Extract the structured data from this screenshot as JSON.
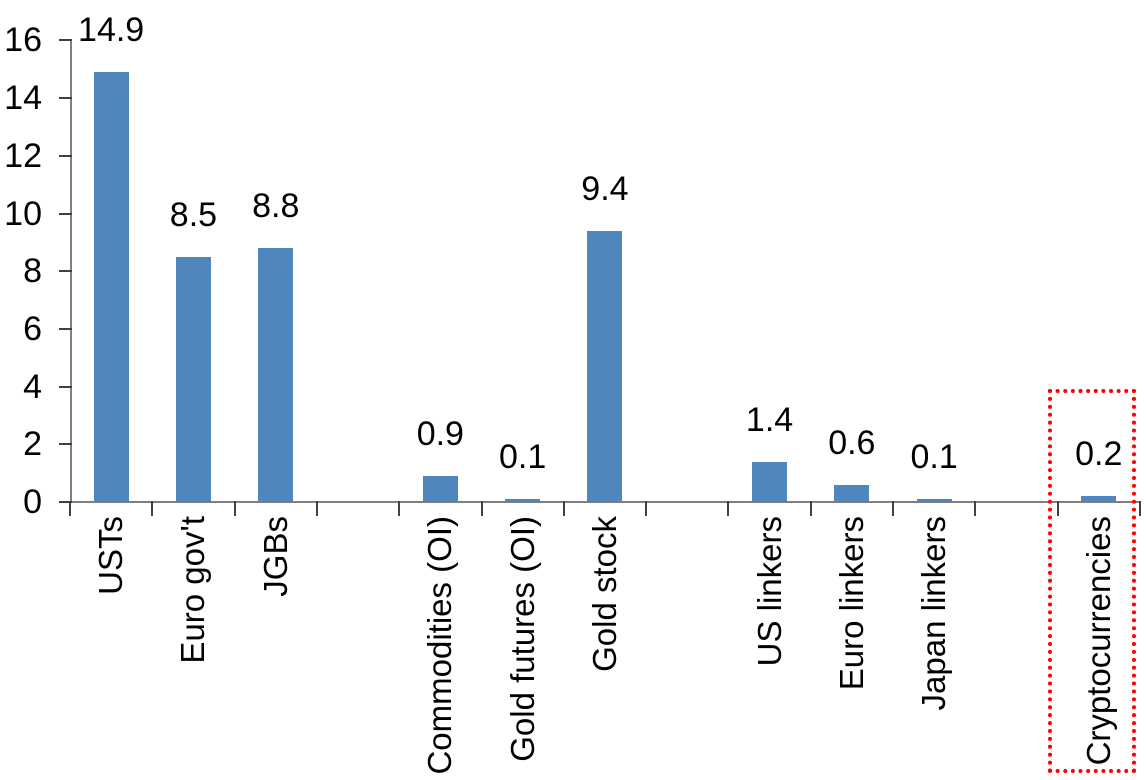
{
  "chart_data": {
    "type": "bar",
    "title": "",
    "xlabel": "",
    "ylabel": "",
    "categories": [
      "USTs",
      "Euro gov't",
      "JGBs",
      "Commodities (OI)",
      "Gold futures (OI)",
      "Gold stock",
      "US linkers",
      "Euro linkers",
      "Japan linkers",
      "Cryptocurrencies"
    ],
    "values": [
      14.9,
      8.5,
      8.8,
      0.9,
      0.1,
      9.4,
      1.4,
      0.6,
      0.1,
      0.2
    ],
    "value_labels": [
      "14.9",
      "8.5",
      "8.8",
      "0.9",
      "0.1",
      "9.4",
      "1.4",
      "0.6",
      "0.1",
      "0.2"
    ],
    "groups": [
      [
        0,
        1,
        2
      ],
      [
        3,
        4,
        5
      ],
      [
        6,
        7,
        8
      ],
      [
        9
      ]
    ],
    "y_ticks": [
      0,
      2,
      4,
      6,
      8,
      10,
      12,
      14,
      16
    ],
    "ylim": [
      0,
      16
    ],
    "grid": false,
    "legend": null,
    "bar_color": "#4E86BD",
    "axis_color": "#7F7F7F",
    "tick_color": "#404040",
    "text_color": "#000000",
    "highlight": {
      "category": "Cryptocurrencies",
      "style": "red-dotted-box",
      "color": "#FF0000"
    }
  }
}
